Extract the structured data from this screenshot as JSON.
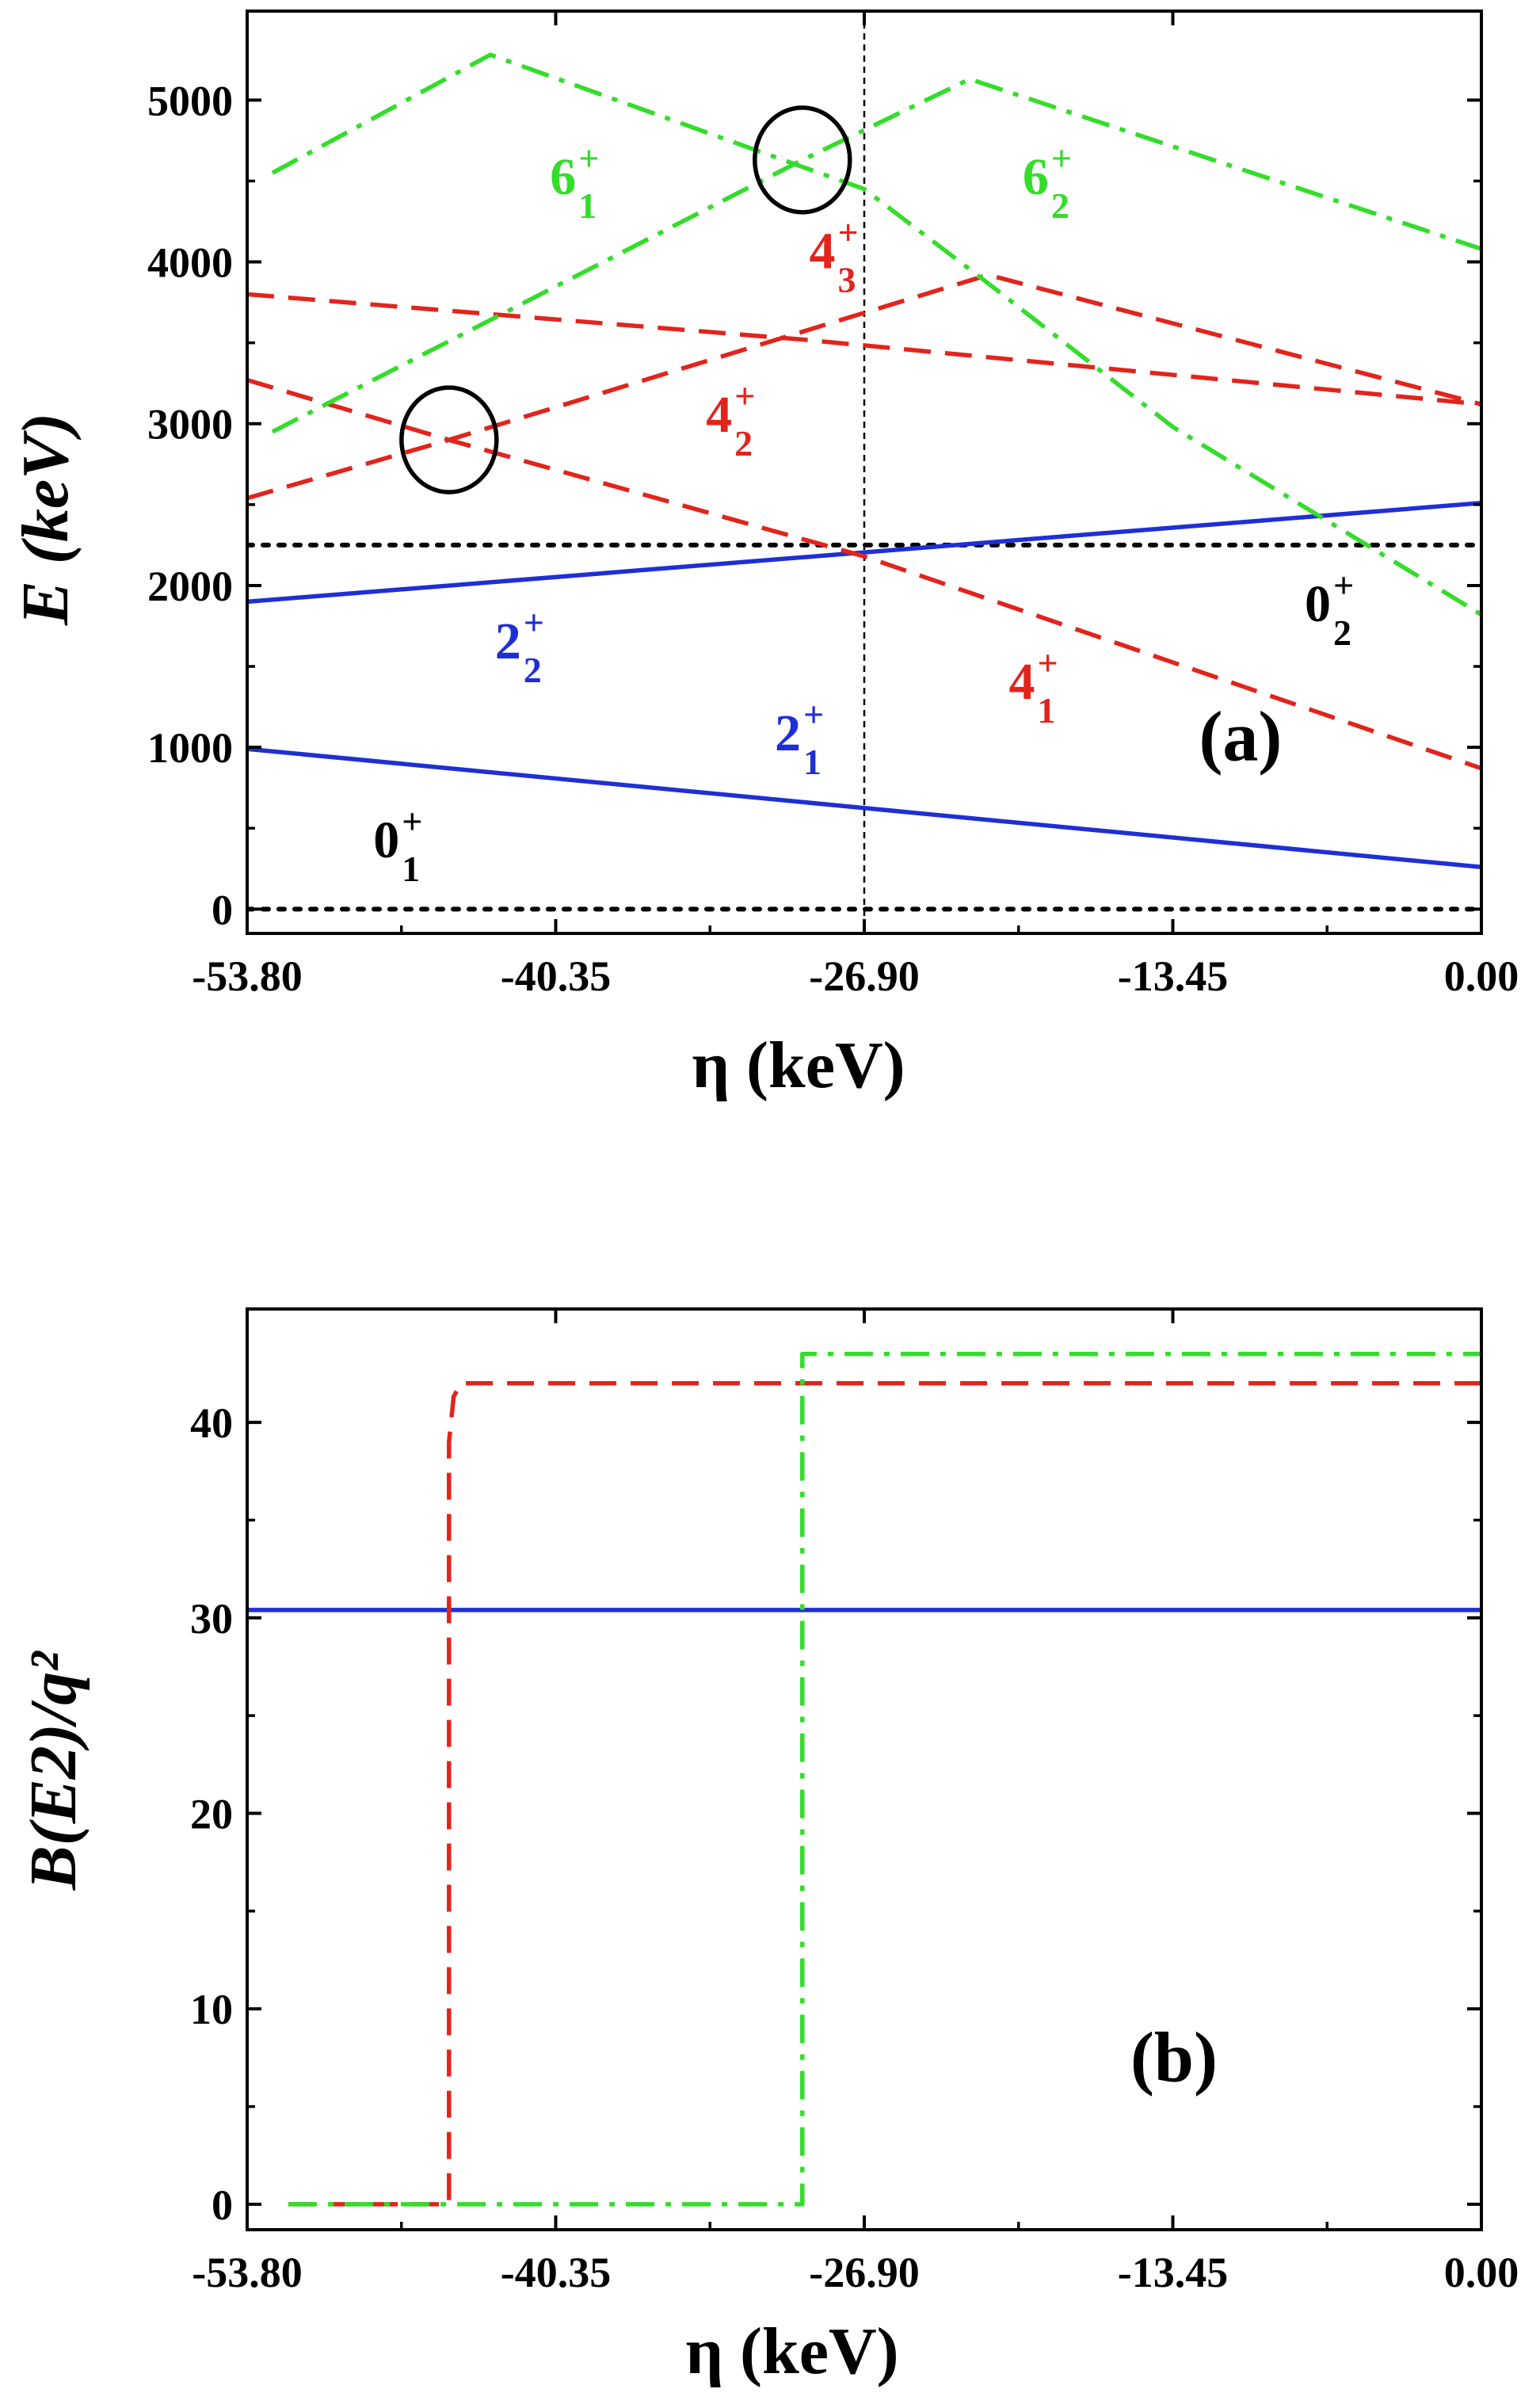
{
  "colors": {
    "blue": "#1f2fd6",
    "red": "#e2241c",
    "green": "#33dd2a",
    "black": "#000000"
  },
  "chart_data": [
    {
      "panel": "(a)",
      "type": "line",
      "xlabel": "η (keV)",
      "ylabel": "E (keV)",
      "xlim": [
        -53.8,
        0
      ],
      "ylim": [
        -150,
        5550
      ],
      "x_ticks": [
        "-53.80",
        "-40.35",
        "-26.90",
        "-13.45",
        "0.00"
      ],
      "y_ticks": [
        "0",
        "1000",
        "2000",
        "3000",
        "4000",
        "5000"
      ],
      "annotations": {
        "vertical_line_x": -26.9,
        "circles": [
          {
            "x": -45.0,
            "y": 2900
          },
          {
            "x": -29.6,
            "y": 4630
          }
        ]
      },
      "series": [
        {
          "id": "0_1",
          "color": "black",
          "style": "dotted",
          "x": [
            -53.8,
            0
          ],
          "y": [
            0,
            0
          ]
        },
        {
          "id": "0_2",
          "color": "black",
          "style": "dotted",
          "x": [
            -53.8,
            0
          ],
          "y": [
            2250,
            2250
          ]
        },
        {
          "id": "2_1",
          "color": "blue",
          "style": "solid",
          "x": [
            -53.8,
            0
          ],
          "y": [
            990,
            260
          ]
        },
        {
          "id": "2_2",
          "color": "blue",
          "style": "solid",
          "x": [
            -53.8,
            0
          ],
          "y": [
            1900,
            2510
          ]
        },
        {
          "id": "4_a",
          "color": "red",
          "style": "dashed",
          "x": [
            -53.8,
            -45.0,
            -26.9,
            0
          ],
          "y": [
            3270,
            2900,
            2180,
            870
          ]
        },
        {
          "id": "4_b",
          "color": "red",
          "style": "dashed",
          "x": [
            -53.8,
            -45.0,
            -21.5,
            0
          ],
          "y": [
            2540,
            2900,
            3920,
            3120
          ]
        },
        {
          "id": "4_c",
          "color": "red",
          "style": "dashed",
          "x": [
            -53.8,
            -29.6,
            0
          ],
          "y": [
            3800,
            3520,
            3120
          ]
        },
        {
          "id": "6_a",
          "color": "green",
          "style": "dashdot",
          "x": [
            -52.7,
            -43.2,
            -26.9,
            -21.8,
            -13.45,
            0
          ],
          "y": [
            4550,
            5280,
            4450,
            3900,
            2980,
            1820
          ]
        },
        {
          "id": "6_b",
          "color": "green",
          "style": "dashdot",
          "x": [
            -52.7,
            -29.6,
            -22.3,
            0
          ],
          "y": [
            2950,
            4630,
            5130,
            4080
          ]
        }
      ],
      "labels": [
        {
          "id": "label-6-1",
          "main": "6",
          "sup": "+",
          "sub": "1",
          "color": "green",
          "x": -40.6,
          "y": 4420
        },
        {
          "id": "label-6-2",
          "main": "6",
          "sup": "+",
          "sub": "2",
          "color": "green",
          "x": -20.0,
          "y": 4420
        },
        {
          "id": "label-4-3",
          "main": "4",
          "sup": "+",
          "sub": "3",
          "color": "red",
          "x": -29.3,
          "y": 3960
        },
        {
          "id": "label-4-2",
          "main": "4",
          "sup": "+",
          "sub": "2",
          "color": "red",
          "x": -33.8,
          "y": 2950
        },
        {
          "id": "label-4-1",
          "main": "4",
          "sup": "+",
          "sub": "1",
          "color": "red",
          "x": -20.6,
          "y": 1300
        },
        {
          "id": "label-0-2",
          "main": "0",
          "sup": "+",
          "sub": "2",
          "color": "black",
          "x": -7.7,
          "y": 1780
        },
        {
          "id": "label-2-2",
          "main": "2",
          "sup": "+",
          "sub": "2",
          "color": "blue",
          "x": -43.0,
          "y": 1550
        },
        {
          "id": "label-2-1",
          "main": "2",
          "sup": "+",
          "sub": "1",
          "color": "blue",
          "x": -30.8,
          "y": 980
        },
        {
          "id": "label-0-1",
          "main": "0",
          "sup": "+",
          "sub": "1",
          "color": "black",
          "x": -48.3,
          "y": 320
        }
      ],
      "panel_label_pos": {
        "x": -10.5,
        "y": 920
      }
    },
    {
      "panel": "(b)",
      "type": "line",
      "xlabel": "η (keV)",
      "ylabel": "B(E2)/q²",
      "xlim": [
        -53.8,
        0
      ],
      "ylim": [
        -1.3,
        45.8
      ],
      "x_ticks": [
        "-53.80",
        "-40.35",
        "-26.90",
        "-13.45",
        "0.00"
      ],
      "y_ticks": [
        "0",
        "10",
        "20",
        "30",
        "40"
      ],
      "series": [
        {
          "id": "be2-blue",
          "color": "blue",
          "style": "solid",
          "x": [
            -53.8,
            0
          ],
          "y": [
            30.4,
            30.4
          ]
        },
        {
          "id": "be2-red",
          "color": "red",
          "style": "dashed",
          "x": [
            -52.0,
            -45.0,
            -45.0,
            -44.8,
            -44.5,
            0
          ],
          "y": [
            0,
            0,
            39,
            41.3,
            42,
            42
          ]
        },
        {
          "id": "be2-green",
          "color": "green",
          "style": "dashdot",
          "x": [
            -52.0,
            -29.6,
            -29.6,
            0
          ],
          "y": [
            0,
            0,
            43.5,
            43.5
          ]
        }
      ],
      "panel_label_pos": {
        "x": -13.4,
        "y": 6.3
      }
    }
  ]
}
